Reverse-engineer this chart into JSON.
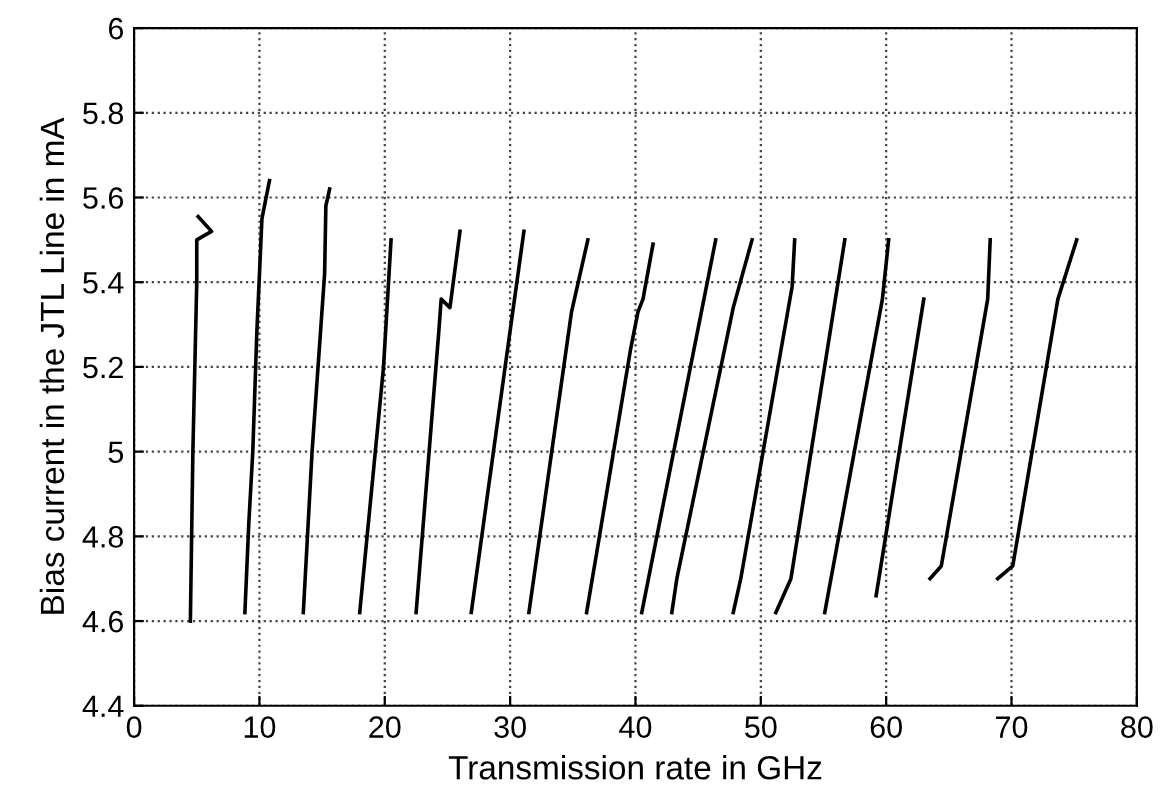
{
  "chart_data": {
    "type": "line",
    "xlabel": "Transmission rate in GHz",
    "ylabel": "Bias current in the JTL Line in mA",
    "xlim": [
      0,
      80
    ],
    "ylim": [
      4.4,
      6
    ],
    "xticks": [
      0,
      10,
      20,
      30,
      40,
      50,
      60,
      70,
      80
    ],
    "yticks": [
      4.4,
      4.6,
      4.8,
      5,
      5.2,
      5.4,
      5.6,
      5.8,
      6
    ],
    "grid": true,
    "line_style": "solid",
    "marker": "none",
    "series": [
      {
        "color": "#000000",
        "x": [
          4.49,
          4.69,
          5.0,
          5.0,
          6.18,
          5.11
        ],
        "values": [
          4.6,
          5.0,
          5.4,
          5.5,
          5.52,
          5.555
        ]
      },
      {
        "color": "#000000",
        "x": [
          8.84,
          9.15,
          9.47,
          9.79,
          10.2,
          10.8
        ],
        "values": [
          4.62,
          4.83,
          5.0,
          5.28,
          5.55,
          5.64
        ]
      },
      {
        "color": "#000000",
        "x": [
          13.5,
          14.2,
          15.2,
          15.3,
          15.6
        ],
        "values": [
          4.62,
          5.0,
          5.42,
          5.58,
          5.62
        ]
      },
      {
        "color": "#000000",
        "x": [
          18.0,
          19.9,
          20.5
        ],
        "values": [
          4.62,
          5.2,
          5.5
        ]
      },
      {
        "color": "#000000",
        "x": [
          22.5,
          24.3,
          24.5,
          25.2,
          26.0
        ],
        "values": [
          4.62,
          5.28,
          5.36,
          5.34,
          5.52
        ]
      },
      {
        "color": "#000000",
        "x": [
          26.9,
          29.6,
          31.1
        ],
        "values": [
          4.62,
          5.2,
          5.52
        ]
      },
      {
        "color": "#000000",
        "x": [
          31.5,
          34.9,
          36.2
        ],
        "values": [
          4.62,
          5.33,
          5.5
        ]
      },
      {
        "color": "#000000",
        "x": [
          36.1,
          36.9,
          39.6,
          40.2,
          40.6,
          41.4
        ],
        "values": [
          4.62,
          4.76,
          5.24,
          5.33,
          5.36,
          5.49
        ]
      },
      {
        "color": "#000000",
        "x": [
          40.5,
          46.4
        ],
        "values": [
          4.62,
          5.5
        ]
      },
      {
        "color": "#000000",
        "x": [
          42.9,
          43.3,
          47.8,
          49.3
        ],
        "values": [
          4.62,
          4.7,
          5.34,
          5.5
        ]
      },
      {
        "color": "#000000",
        "x": [
          47.8,
          48.4,
          52.5,
          52.7
        ],
        "values": [
          4.62,
          4.7,
          5.39,
          5.5
        ]
      },
      {
        "color": "#000000",
        "x": [
          51.2,
          52.4,
          56.7
        ],
        "values": [
          4.62,
          4.7,
          5.5
        ]
      },
      {
        "color": "#000000",
        "x": [
          55.1,
          59.7,
          60.2
        ],
        "values": [
          4.62,
          5.36,
          5.5
        ]
      },
      {
        "color": "#000000",
        "x": [
          59.2,
          63.0
        ],
        "values": [
          4.66,
          5.36
        ]
      },
      {
        "color": "#000000",
        "x": [
          63.5,
          64.4,
          68.1,
          68.3
        ],
        "values": [
          4.7,
          4.73,
          5.36,
          5.5
        ]
      },
      {
        "color": "#000000",
        "x": [
          68.9,
          70.1,
          73.7,
          75.2
        ],
        "values": [
          4.7,
          4.73,
          5.36,
          5.5
        ]
      }
    ]
  }
}
